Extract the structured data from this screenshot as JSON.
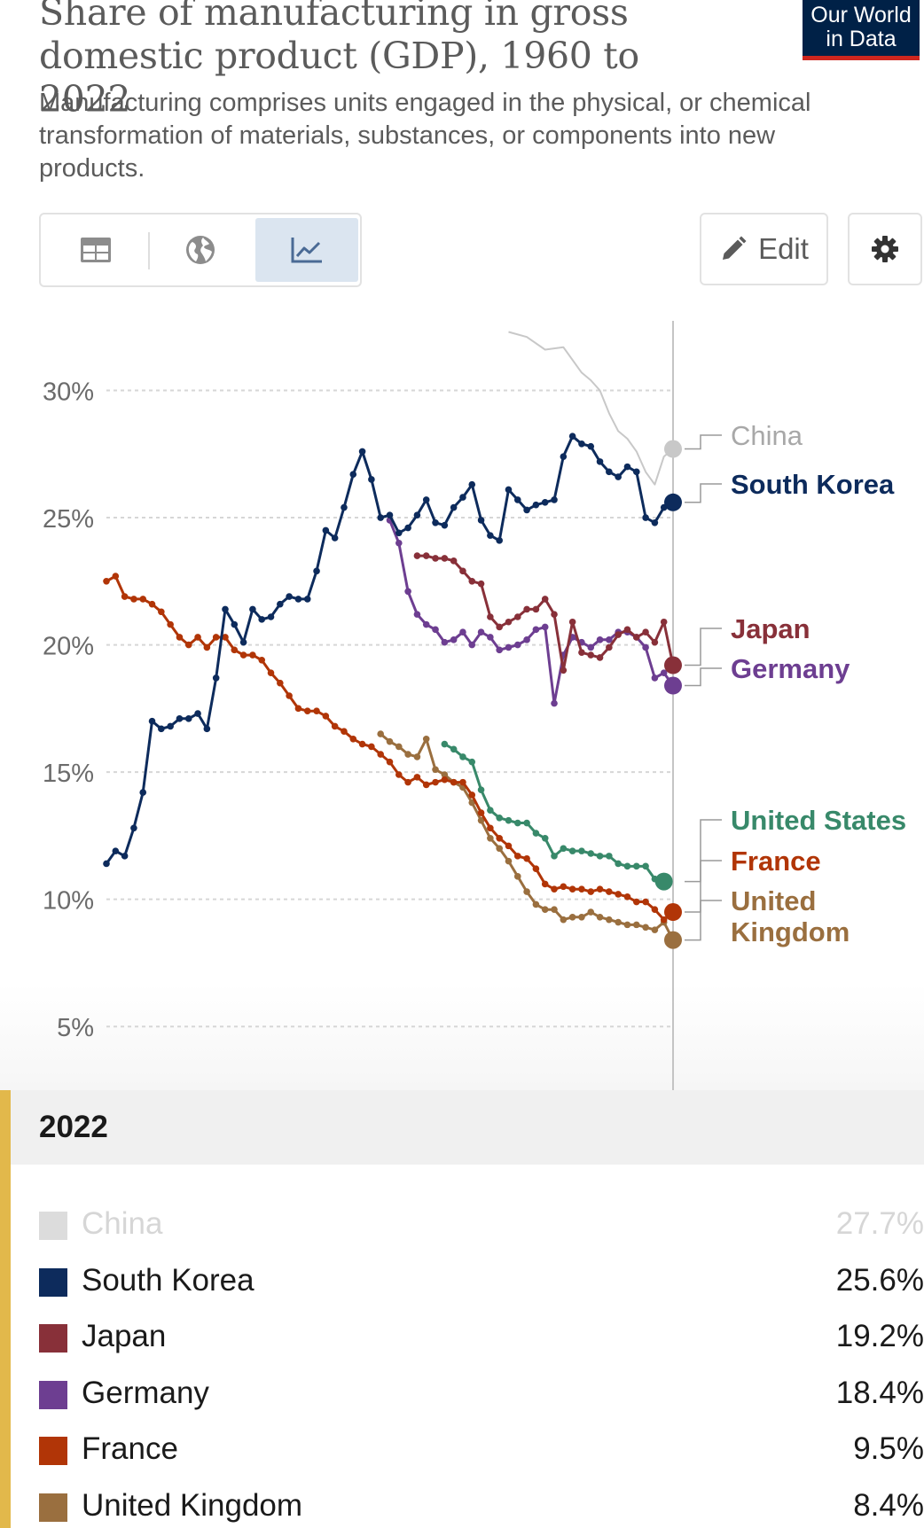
{
  "header": {
    "title": "Share of manufacturing in gross domestic product (GDP), 1960 to 2022",
    "subtitle": "Manufacturing comprises units engaged in the physical, or chemical transformation of materials, substances, or components into new products.",
    "logo_line1": "Our World",
    "logo_line2": "in Data"
  },
  "controls": {
    "tabs": [
      {
        "name": "table",
        "icon": "table-icon",
        "active": false
      },
      {
        "name": "map",
        "icon": "globe-icon",
        "active": false
      },
      {
        "name": "chart",
        "icon": "line-chart-icon",
        "active": true
      }
    ],
    "edit_label": "Edit",
    "settings_icon": "gear-icon"
  },
  "chart_data": {
    "type": "line",
    "title": "Share of manufacturing in gross domestic product (GDP), 1960 to 2022",
    "ylabel": "",
    "xlabel": "",
    "ylim": [
      2.5,
      33.5
    ],
    "xlim": [
      1960,
      2022
    ],
    "y_ticks": [
      5,
      10,
      15,
      20,
      25,
      30
    ],
    "y_tick_labels": [
      "5%",
      "10%",
      "15%",
      "20%",
      "25%",
      "30%"
    ],
    "grid": true,
    "legend": "right-end labels",
    "series": [
      {
        "name": "China",
        "color": "#c8c8c8",
        "faded": true,
        "end_value": 27.7,
        "markers": false,
        "x": [
          2004,
          2006,
          2008,
          2010,
          2012,
          2013,
          2014,
          2015,
          2016,
          2017,
          2018,
          2019,
          2020,
          2021,
          2022
        ],
        "y": [
          32.3,
          32.1,
          31.6,
          31.7,
          30.7,
          30.4,
          30.0,
          29.1,
          28.4,
          28.1,
          27.6,
          26.8,
          26.3,
          27.4,
          27.7
        ]
      },
      {
        "name": "South Korea",
        "color": "#0d2b5c",
        "faded": false,
        "end_value": 25.6,
        "markers": true,
        "x": [
          1960,
          1961,
          1962,
          1963,
          1964,
          1965,
          1966,
          1967,
          1968,
          1969,
          1970,
          1971,
          1972,
          1973,
          1974,
          1975,
          1976,
          1977,
          1978,
          1979,
          1980,
          1981,
          1982,
          1983,
          1984,
          1985,
          1986,
          1987,
          1988,
          1989,
          1990,
          1991,
          1992,
          1993,
          1994,
          1995,
          1996,
          1997,
          1998,
          1999,
          2000,
          2001,
          2002,
          2003,
          2004,
          2005,
          2006,
          2007,
          2008,
          2009,
          2010,
          2011,
          2012,
          2013,
          2014,
          2015,
          2016,
          2017,
          2018,
          2019,
          2020,
          2021,
          2022
        ],
        "y": [
          11.4,
          11.9,
          11.7,
          12.8,
          14.2,
          17.0,
          16.7,
          16.8,
          17.1,
          17.1,
          17.3,
          16.7,
          18.7,
          21.4,
          20.8,
          20.1,
          21.4,
          21.0,
          21.1,
          21.6,
          21.9,
          21.8,
          21.8,
          22.9,
          24.5,
          24.2,
          25.4,
          26.7,
          27.6,
          26.5,
          25.0,
          25.1,
          24.4,
          24.6,
          25.1,
          25.7,
          24.8,
          24.7,
          25.4,
          25.8,
          26.3,
          24.9,
          24.3,
          24.1,
          26.1,
          25.7,
          25.3,
          25.5,
          25.6,
          25.7,
          27.4,
          28.2,
          27.9,
          27.8,
          27.2,
          26.8,
          26.6,
          27.0,
          26.8,
          25.0,
          24.8,
          25.4,
          25.6
        ]
      },
      {
        "name": "Japan",
        "color": "#883039",
        "faded": false,
        "end_value": 19.2,
        "markers": true,
        "x": [
          1994,
          1995,
          1996,
          1997,
          1998,
          1999,
          2000,
          2001,
          2002,
          2003,
          2004,
          2005,
          2006,
          2007,
          2008,
          2009,
          2010,
          2011,
          2012,
          2013,
          2014,
          2015,
          2016,
          2017,
          2018,
          2019,
          2020,
          2021,
          2022
        ],
        "y": [
          23.5,
          23.5,
          23.4,
          23.4,
          23.3,
          22.9,
          22.5,
          22.4,
          21.1,
          20.7,
          20.9,
          21.1,
          21.4,
          21.4,
          21.8,
          21.2,
          19.0,
          20.9,
          19.7,
          19.6,
          19.5,
          19.9,
          20.4,
          20.6,
          20.3,
          20.5,
          20.1,
          20.9,
          19.2
        ]
      },
      {
        "name": "Germany",
        "color": "#6d3e91",
        "faded": false,
        "end_value": 18.4,
        "markers": true,
        "x": [
          1991,
          1992,
          1993,
          1994,
          1995,
          1996,
          1997,
          1998,
          1999,
          2000,
          2001,
          2002,
          2003,
          2004,
          2005,
          2006,
          2007,
          2008,
          2009,
          2010,
          2011,
          2012,
          2013,
          2014,
          2015,
          2016,
          2017,
          2018,
          2019,
          2020,
          2021,
          2022
        ],
        "y": [
          24.9,
          24.0,
          22.1,
          21.2,
          20.8,
          20.6,
          20.1,
          20.2,
          20.5,
          20.0,
          20.5,
          20.3,
          19.8,
          19.9,
          20.0,
          20.2,
          20.6,
          20.7,
          17.7,
          19.6,
          20.3,
          20.1,
          19.9,
          20.2,
          20.2,
          20.5,
          20.5,
          20.3,
          19.9,
          18.7,
          18.9,
          18.4
        ]
      },
      {
        "name": "United States",
        "color": "#38896a",
        "faded": false,
        "end_value": 10.7,
        "markers": true,
        "x": [
          1997,
          1998,
          1999,
          2000,
          2001,
          2002,
          2003,
          2004,
          2005,
          2006,
          2007,
          2008,
          2009,
          2010,
          2011,
          2012,
          2013,
          2014,
          2015,
          2016,
          2017,
          2018,
          2019,
          2020,
          2021
        ],
        "y": [
          16.1,
          15.9,
          15.6,
          15.4,
          14.3,
          13.5,
          13.2,
          13.1,
          13.0,
          13.0,
          12.6,
          12.4,
          11.7,
          12.0,
          11.9,
          11.9,
          11.8,
          11.7,
          11.7,
          11.4,
          11.3,
          11.3,
          11.3,
          10.8,
          10.7
        ]
      },
      {
        "name": "France",
        "color": "#b13507",
        "faded": false,
        "end_value": 9.5,
        "markers": true,
        "x": [
          1960,
          1961,
          1962,
          1963,
          1964,
          1965,
          1966,
          1967,
          1968,
          1969,
          1970,
          1971,
          1972,
          1973,
          1974,
          1975,
          1976,
          1977,
          1978,
          1979,
          1980,
          1981,
          1982,
          1983,
          1984,
          1985,
          1986,
          1987,
          1988,
          1989,
          1990,
          1991,
          1992,
          1993,
          1994,
          1995,
          1996,
          1997,
          1998,
          1999,
          2000,
          2001,
          2002,
          2003,
          2004,
          2005,
          2006,
          2007,
          2008,
          2009,
          2010,
          2011,
          2012,
          2013,
          2014,
          2015,
          2016,
          2017,
          2018,
          2019,
          2020,
          2021,
          2022
        ],
        "y": [
          22.5,
          22.7,
          21.9,
          21.8,
          21.8,
          21.6,
          21.3,
          20.8,
          20.3,
          20.0,
          20.3,
          19.9,
          20.3,
          20.3,
          19.8,
          19.6,
          19.6,
          19.4,
          18.9,
          18.5,
          18.0,
          17.5,
          17.4,
          17.4,
          17.2,
          16.8,
          16.6,
          16.3,
          16.1,
          16.0,
          15.7,
          15.4,
          14.9,
          14.6,
          14.8,
          14.5,
          14.6,
          14.7,
          14.6,
          14.6,
          14.1,
          13.4,
          12.8,
          12.4,
          12.1,
          11.7,
          11.6,
          11.2,
          10.6,
          10.4,
          10.5,
          10.4,
          10.4,
          10.3,
          10.4,
          10.3,
          10.2,
          10.1,
          9.9,
          9.9,
          9.6,
          9.2,
          9.5
        ]
      },
      {
        "name": "United Kingdom",
        "color": "#9a6f3f",
        "faded": false,
        "end_value": 8.4,
        "markers": true,
        "x": [
          1990,
          1991,
          1992,
          1993,
          1994,
          1995,
          1996,
          1997,
          1998,
          1999,
          2000,
          2001,
          2002,
          2003,
          2004,
          2005,
          2006,
          2007,
          2008,
          2009,
          2010,
          2011,
          2012,
          2013,
          2014,
          2015,
          2016,
          2017,
          2018,
          2019,
          2020,
          2021,
          2022
        ],
        "y": [
          16.5,
          16.2,
          16.0,
          15.7,
          15.6,
          16.3,
          15.1,
          14.9,
          14.6,
          14.4,
          13.8,
          13.1,
          12.4,
          12.0,
          11.5,
          10.9,
          10.3,
          9.8,
          9.6,
          9.6,
          9.2,
          9.3,
          9.3,
          9.5,
          9.3,
          9.2,
          9.1,
          9.0,
          9.0,
          8.9,
          8.8,
          9.1,
          8.4
        ]
      }
    ]
  },
  "end_labels": [
    {
      "name": "China",
      "lines": [
        "China"
      ],
      "color": "#a8a8a8"
    },
    {
      "name": "South Korea",
      "lines": [
        "South Korea"
      ],
      "color": "#0d2b5c"
    },
    {
      "name": "Japan",
      "lines": [
        "Japan"
      ],
      "color": "#883039"
    },
    {
      "name": "Germany",
      "lines": [
        "Germany"
      ],
      "color": "#6d3e91"
    },
    {
      "name": "United States",
      "lines": [
        "United States"
      ],
      "color": "#38896a"
    },
    {
      "name": "France",
      "lines": [
        "France"
      ],
      "color": "#b13507"
    },
    {
      "name": "United Kingdom",
      "lines": [
        "United",
        "Kingdom"
      ],
      "color": "#9a6f3f"
    }
  ],
  "tooltip": {
    "year": "2022",
    "rows": [
      {
        "name": "China",
        "value": "27.7%",
        "color": "#dcdcdc",
        "faded": true
      },
      {
        "name": "South Korea",
        "value": "25.6%",
        "color": "#0d2b5c",
        "faded": false
      },
      {
        "name": "Japan",
        "value": "19.2%",
        "color": "#883039",
        "faded": false
      },
      {
        "name": "Germany",
        "value": "18.4%",
        "color": "#6d3e91",
        "faded": false
      },
      {
        "name": "France",
        "value": "9.5%",
        "color": "#b13507",
        "faded": false
      },
      {
        "name": "United Kingdom",
        "value": "8.4%",
        "color": "#9a6f3f",
        "faded": false
      }
    ]
  }
}
